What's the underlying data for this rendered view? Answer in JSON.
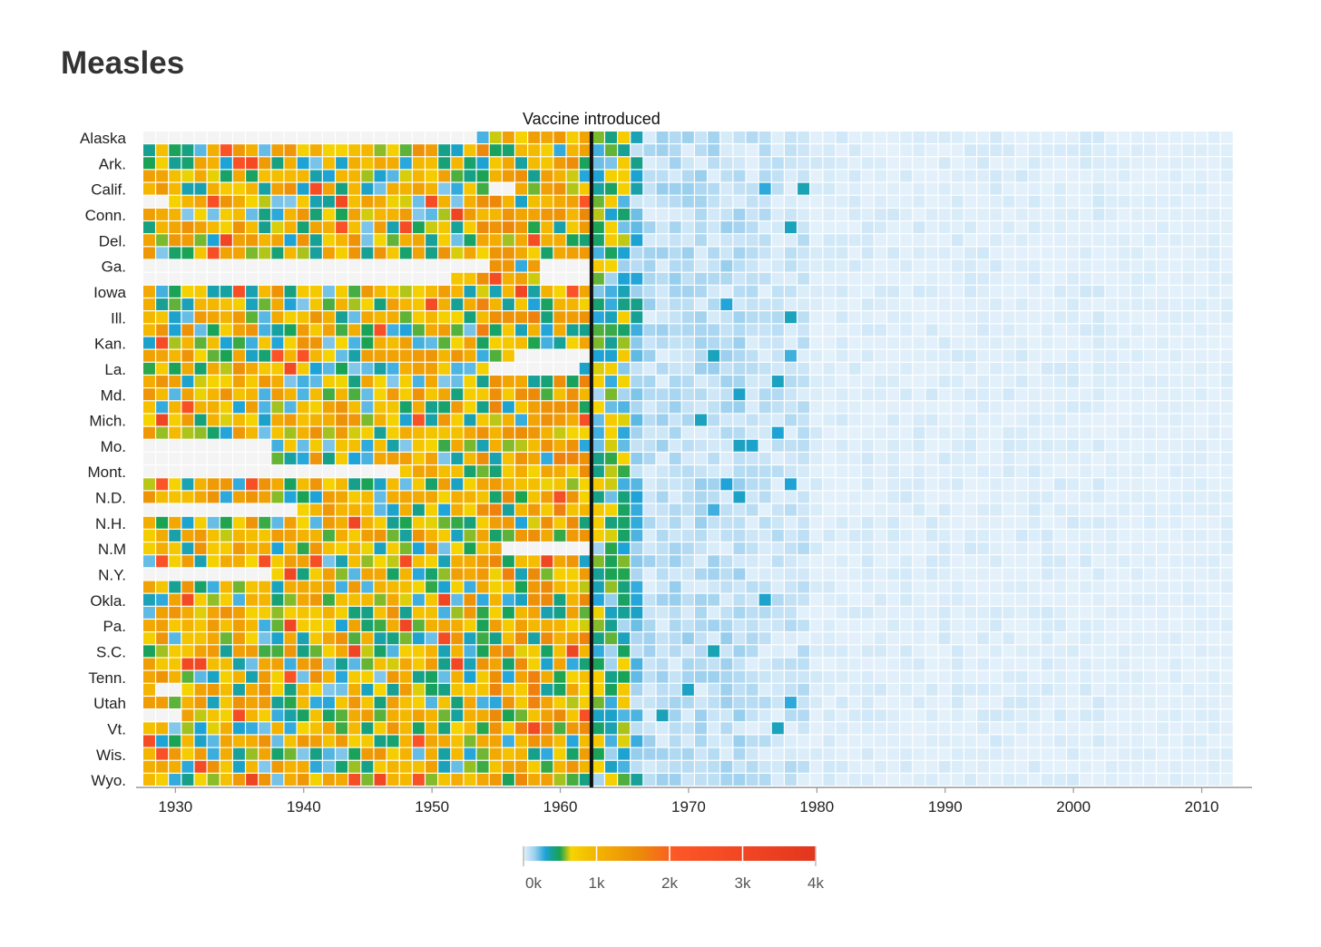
{
  "chart_data": {
    "type": "heatmap",
    "title": "Measles",
    "annotation": {
      "label": "Vaccine introduced",
      "year": 1963
    },
    "x_range": [
      1928,
      2012
    ],
    "x_ticks": [
      1930,
      1940,
      1950,
      1960,
      1970,
      1980,
      1990,
      2000,
      2010
    ],
    "rows": 51,
    "state_labels": [
      "Alaska",
      "Ark.",
      "Calif.",
      "Conn.",
      "Del.",
      "Ga.",
      "Iowa",
      "Ill.",
      "Kan.",
      "La.",
      "Md.",
      "Mich.",
      "Mo.",
      "Mont.",
      "N.D.",
      "N.H.",
      "N.M",
      "N.Y.",
      "Okla.",
      "Pa.",
      "S.C.",
      "Tenn.",
      "Utah",
      "Vt.",
      "Wis.",
      "Wyo."
    ],
    "label_every": 2,
    "color_scale": {
      "domain": [
        0,
        4000
      ],
      "tick_values": [
        0,
        1000,
        2000,
        3000,
        4000
      ],
      "tick_labels": [
        "0k",
        "1k",
        "2k",
        "3k",
        "4k"
      ],
      "stops": [
        {
          "v": 0,
          "color": "#e4f1fb"
        },
        {
          "v": 150,
          "color": "#9dd0ee"
        },
        {
          "v": 300,
          "color": "#1ea3d9"
        },
        {
          "v": 400,
          "color": "#16a08a"
        },
        {
          "v": 500,
          "color": "#1aa352"
        },
        {
          "v": 650,
          "color": "#f5d400"
        },
        {
          "v": 1000,
          "color": "#f4b400"
        },
        {
          "v": 1600,
          "color": "#ec8a0a"
        },
        {
          "v": 2100,
          "color": "#fd5627"
        },
        {
          "v": 4000,
          "color": "#e2361e"
        }
      ]
    },
    "eras": [
      {
        "from": 1928,
        "to": 1954,
        "min": 180,
        "max": 1500
      },
      {
        "from": 1954,
        "to": 1963,
        "min": 250,
        "max": 1700
      },
      {
        "from": 1963,
        "to": 1966,
        "min": 120,
        "max": 800
      },
      {
        "from": 1966,
        "to": 1967,
        "min": 50,
        "max": 420
      },
      {
        "from": 1967,
        "to": 1975,
        "min": 10,
        "max": 160
      },
      {
        "from": 1975,
        "to": 1980,
        "min": 5,
        "max": 110
      },
      {
        "from": 1980,
        "to": 2003,
        "min": 0,
        "max": 45
      },
      {
        "from": 2003,
        "to": 2013,
        "min": 0,
        "max": 25
      }
    ],
    "missing_blocks": [
      {
        "rows": [
          0,
          0
        ],
        "from": 1928,
        "to": 1954
      },
      {
        "rows": [
          4,
          4
        ],
        "from": 1955,
        "to": 1957
      },
      {
        "rows": [
          5,
          5
        ],
        "from": 1928,
        "to": 1930
      },
      {
        "rows": [
          10,
          10
        ],
        "from": 1928,
        "to": 1955
      },
      {
        "rows": [
          11,
          11
        ],
        "from": 1928,
        "to": 1952
      },
      {
        "rows": [
          10,
          11
        ],
        "from": 1959,
        "to": 1963
      },
      {
        "rows": [
          17,
          17
        ],
        "from": 1957,
        "to": 1963
      },
      {
        "rows": [
          18,
          18
        ],
        "from": 1955,
        "to": 1962
      },
      {
        "rows": [
          24,
          25
        ],
        "from": 1928,
        "to": 1938
      },
      {
        "rows": [
          26,
          26
        ],
        "from": 1928,
        "to": 1948
      },
      {
        "rows": [
          29,
          29
        ],
        "from": 1928,
        "to": 1940
      },
      {
        "rows": [
          32,
          32
        ],
        "from": 1956,
        "to": 1963
      },
      {
        "rows": [
          34,
          34
        ],
        "from": 1928,
        "to": 1938
      },
      {
        "rows": [
          43,
          43
        ],
        "from": 1929,
        "to": 1931
      },
      {
        "rows": [
          45,
          45
        ],
        "from": 1928,
        "to": 1931
      }
    ],
    "seed": 7
  }
}
